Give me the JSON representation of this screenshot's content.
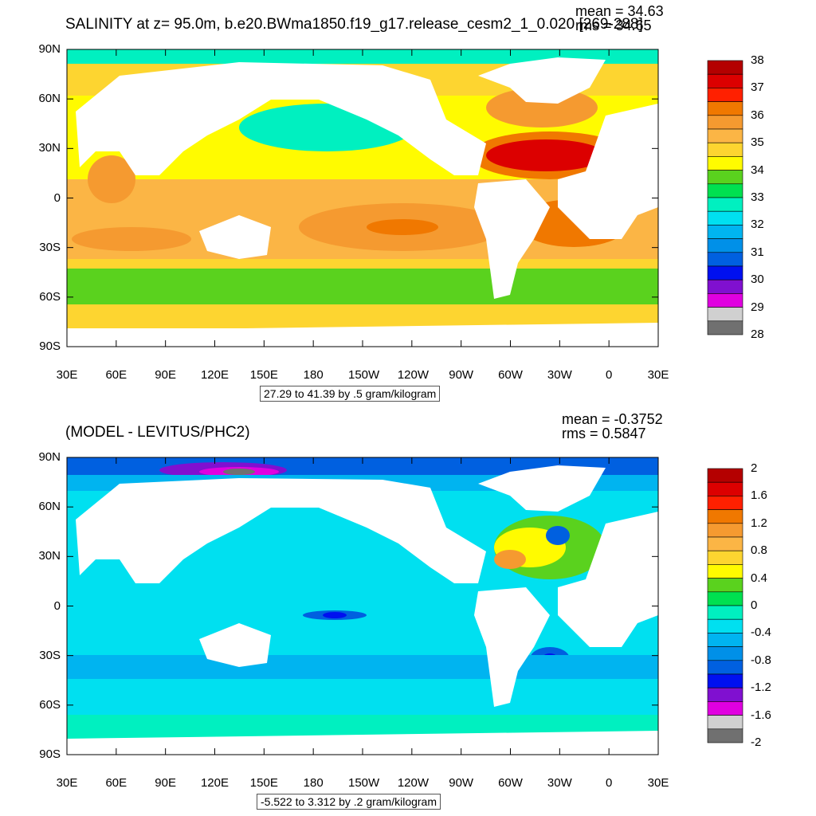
{
  "top_panel": {
    "title": "SALINITY at z=  95.0m, b.e20.BWma1850.f19_g17.release_cesm2_1_0.020 [269-288]",
    "mean_text": "mean = 34.63",
    "rms_text": "rms = 34.65",
    "range_text": "27.29 to 41.39 by .5 gram/kilogram",
    "colorbar_labels": [
      "38",
      "37",
      "36",
      "35",
      "34",
      "33",
      "32",
      "31",
      "30",
      "29",
      "28"
    ],
    "colorbar_colors": [
      "#b40000",
      "#dc0000",
      "#ff2000",
      "#f07800",
      "#f59a30",
      "#fbb545",
      "#fdd530",
      "#fffb00",
      "#5ad21e",
      "#00e050",
      "#00f0c0",
      "#00e0f0",
      "#00b4f0",
      "#0090e8",
      "#0060e0",
      "#0010f0",
      "#8010d0",
      "#e000e0",
      "#d0d0d0",
      "#707070"
    ]
  },
  "bottom_panel": {
    "title": "(MODEL - LEVITUS/PHC2)",
    "mean_text": "mean = -0.3752",
    "rms_text": "rms = 0.5847",
    "range_text": "-5.522 to 3.312 by .2 gram/kilogram",
    "colorbar_labels": [
      "2",
      "1.6",
      "1.2",
      "0.8",
      "0.4",
      "0",
      "-0.4",
      "-0.8",
      "-1.2",
      "-1.6",
      "-2"
    ],
    "colorbar_colors": [
      "#b40000",
      "#dc0000",
      "#ff2000",
      "#f07800",
      "#f59a30",
      "#fbb545",
      "#fdd530",
      "#fffb00",
      "#5ad21e",
      "#00e050",
      "#00f0c0",
      "#00e0f0",
      "#00b4f0",
      "#0090e8",
      "#0060e0",
      "#0010f0",
      "#8010d0",
      "#e000e0",
      "#d0d0d0",
      "#707070"
    ]
  },
  "axes": {
    "lat_labels": [
      "90N",
      "60N",
      "30N",
      "0",
      "30S",
      "60S",
      "90S"
    ],
    "lon_labels": [
      "30E",
      "60E",
      "90E",
      "120E",
      "150E",
      "180",
      "150W",
      "120W",
      "90W",
      "60W",
      "30W",
      "0",
      "30E"
    ]
  },
  "colors": {
    "land": "#ffffff",
    "contour_line": "#000000"
  }
}
